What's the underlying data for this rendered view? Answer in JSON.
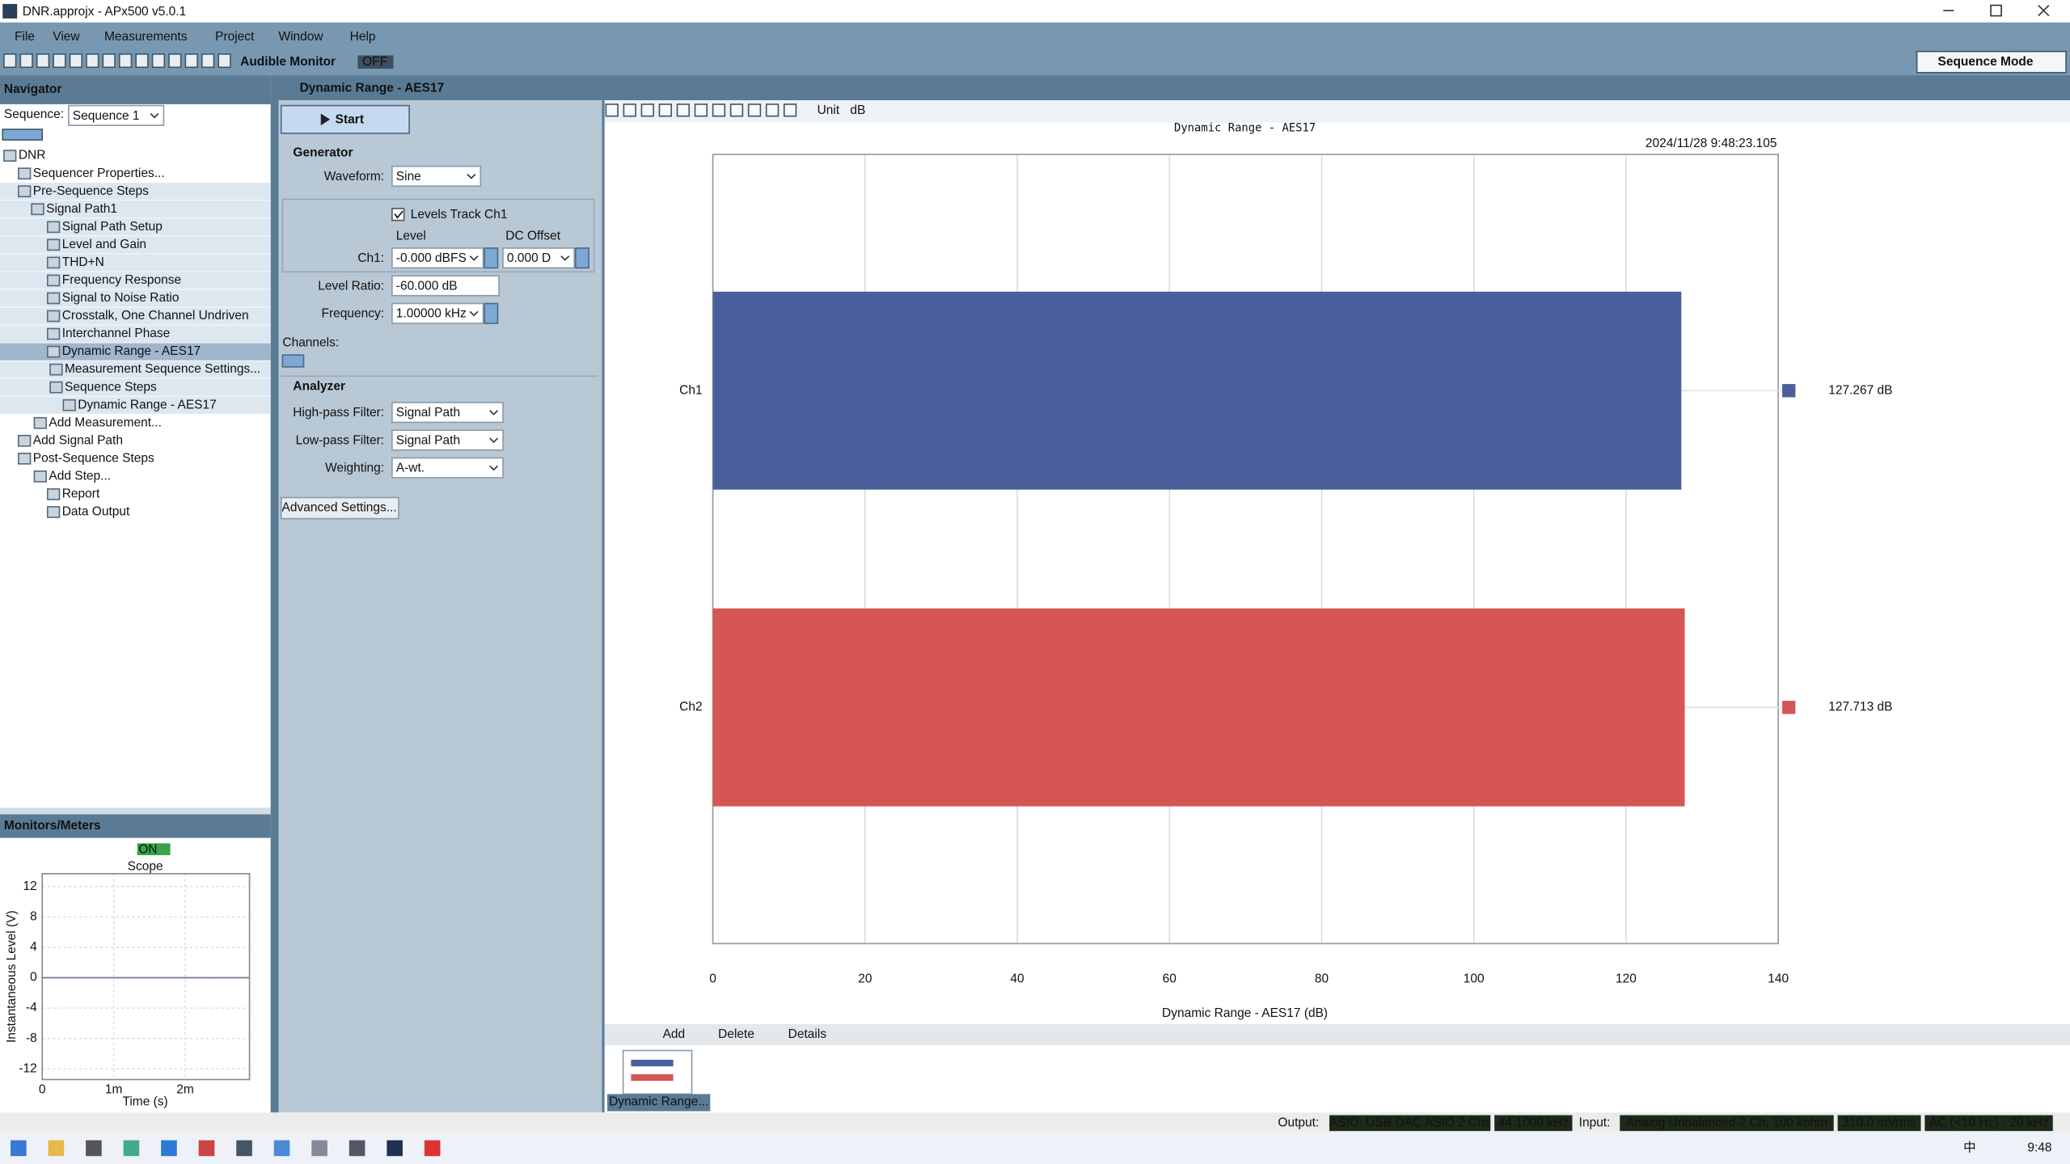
{
  "window": {
    "title": "DNR.approjx - APx500 v5.0.1"
  },
  "menu": [
    "File",
    "View",
    "Measurements",
    "Project",
    "Window",
    "Help"
  ],
  "toolbar": {
    "audible_monitor": "Audible Monitor",
    "audible_state": "OFF",
    "mode": "Sequence Mode"
  },
  "navigator": {
    "title": "Navigator",
    "sequence_label": "Sequence:",
    "sequence": "Sequence 1",
    "tree": [
      "DNR",
      "Sequencer Properties...",
      "Pre-Sequence Steps",
      "Signal Path1",
      "Signal Path Setup",
      "Level and Gain",
      "THD+N",
      "Frequency Response",
      "Signal to Noise Ratio",
      "Crosstalk, One Channel Undriven",
      "Interchannel Phase",
      "Dynamic Range - AES17",
      "Measurement Sequence Settings...",
      "Sequence Steps",
      "Dynamic Range - AES17",
      "Add Measurement...",
      "Add Signal Path",
      "Post-Sequence Steps",
      "Add Step...",
      "Report",
      "Data Output"
    ]
  },
  "monitors": {
    "title": "Monitors/Meters",
    "state": "ON"
  },
  "measurement": {
    "title": "Dynamic Range - AES17",
    "start": "Start",
    "generator": {
      "title": "Generator",
      "waveform_label": "Waveform:",
      "waveform": "Sine",
      "levels_track": "Levels Track Ch1",
      "level_header": "Level",
      "dc_offset_header": "DC Offset",
      "ch1_label": "Ch1:",
      "ch1_level": "-0.000 dBFS",
      "ch1_dc_offset": "0.000 D",
      "level_ratio_label": "Level Ratio:",
      "level_ratio": "-60.000 dB",
      "frequency_label": "Frequency:",
      "frequency": "1.00000 kHz",
      "channels_label": "Channels:"
    },
    "analyzer": {
      "title": "Analyzer",
      "highpass_label": "High-pass Filter:",
      "highpass": "Signal Path",
      "lowpass_label": "Low-pass Filter:",
      "lowpass": "Signal Path",
      "weighting_label": "Weighting:",
      "weighting": "A-wt."
    },
    "advanced": "Advanced Settings..."
  },
  "graph_toolbar": {
    "unit_label": "Unit",
    "unit": "dB"
  },
  "chart_data": [
    {
      "type": "bar",
      "orientation": "horizontal",
      "title": "Dynamic Range - AES17",
      "timestamp": "2024/11/28 9:48:23.105",
      "categories": [
        "Ch1",
        "Ch2"
      ],
      "values": [
        127.267,
        127.713
      ],
      "value_labels": [
        "127.267 dB",
        "127.713 dB"
      ],
      "colors": [
        "#4a5f9c",
        "#d65656"
      ],
      "xlim": [
        0,
        140
      ],
      "xticks": [
        0,
        20,
        40,
        60,
        80,
        100,
        120,
        140
      ],
      "xlabel": "Dynamic Range - AES17 (dB)",
      "grid": true
    },
    {
      "type": "line",
      "title": "Scope",
      "xlabel": "Time (s)",
      "ylabel": "Instantaneous Level (V)",
      "x": [
        0,
        0.0029
      ],
      "series": [
        {
          "color": "#8a7a9a",
          "values": [
            0,
            0
          ]
        }
      ],
      "xlim": [
        0,
        0.0029
      ],
      "ylim": [
        -13.4,
        13.7
      ],
      "xticks": [
        0,
        {
          "value": 0.001,
          "label": "1m"
        },
        {
          "value": 0.002,
          "label": "2m"
        }
      ],
      "yticks": [
        12,
        8,
        4,
        0,
        -4,
        -8,
        -12
      ],
      "grid": true
    }
  ],
  "results_bar": {
    "add": "Add",
    "delete": "Delete",
    "details": "Details",
    "thumbnail": "Dynamic Range..."
  },
  "status": {
    "output_label": "Output:",
    "output_device": "ASIO: USB DAC ASIO 2 Chs",
    "sample_rate": "44.1000 kHz",
    "input_label": "Input:",
    "input_device": "Analog Unbalanced 2 Ch, 100 kohm",
    "input_level": "310.0 mVrms",
    "bandwidth": "AC (<10 Hz) - 20 kHz"
  },
  "taskbar": {
    "ime": "中",
    "clock": "9:48"
  }
}
